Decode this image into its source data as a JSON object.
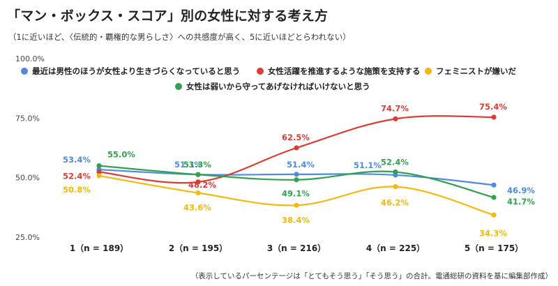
{
  "title": "「マン・ボックス・スコア」別の女性に対する考え方",
  "subtitle": "（1に近いほど、〈伝統的・覇権的な男らしさ〉への共感度が高く、5に近いほどとらわれない）",
  "footnote": "（表示しているパーセンテージは「とてもそう思う」「そう思う」の合計。電通総研の資料を基に編集部作成）",
  "chart_data": {
    "type": "line",
    "categories": [
      "1（n = 189）",
      "2（n = 195）",
      "3（n = 216）",
      "4（n = 225）",
      "5（n = 175）"
    ],
    "y_ticks": [
      "100.0%",
      "75.0%",
      "50.0%",
      "25.0%"
    ],
    "ylim": [
      25,
      100
    ],
    "grid": false,
    "legend_placement": "top",
    "series": [
      {
        "name": "最近は男性のほうが女性より生きづらくなっていると思う",
        "color": "#4f8ae0",
        "values": [
          53.4,
          51.3,
          51.4,
          51.1,
          46.9
        ],
        "labels": [
          "53.4%",
          "51.3%",
          "51.4%",
          "51.1%",
          "46.9%"
        ]
      },
      {
        "name": "女性活躍を推進するような施策を支持する",
        "color": "#dc3c34",
        "values": [
          52.4,
          48.2,
          62.5,
          74.7,
          75.4
        ],
        "labels": [
          "52.4%",
          "48.2%",
          "62.5%",
          "74.7%",
          "75.4%"
        ]
      },
      {
        "name": "フェミニストが嫌いだ",
        "color": "#f2b90f",
        "values": [
          50.8,
          43.6,
          38.4,
          46.2,
          34.3
        ],
        "labels": [
          "50.8%",
          "43.6%",
          "38.4%",
          "46.2%",
          "34.3%"
        ]
      },
      {
        "name": "女性は弱いから守ってあげなければいけないと思う",
        "color": "#33a04f",
        "values": [
          55.0,
          51.3,
          49.1,
          52.4,
          41.7
        ],
        "labels": [
          "55.0%",
          "51.3%",
          "49.1%",
          "52.4%",
          "41.7%"
        ]
      }
    ]
  }
}
